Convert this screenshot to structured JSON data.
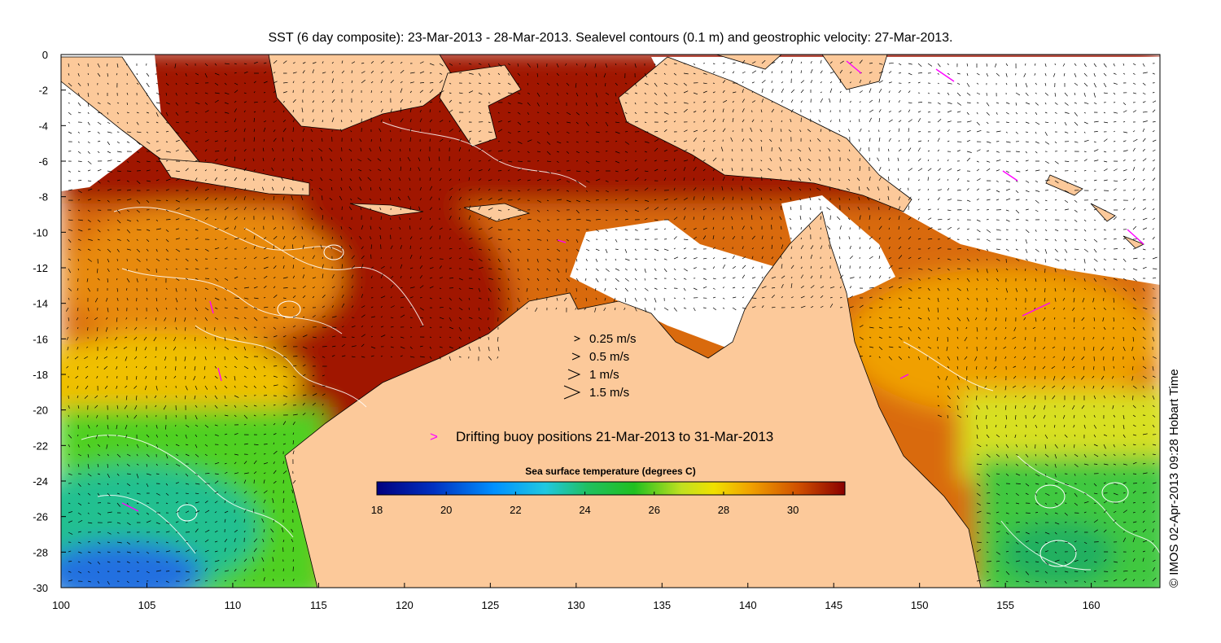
{
  "title": "SST (6 day composite): 23-Mar-2013 - 28-Mar-2013. Sealevel contours (0.1 m) and geostrophic velocity: 27-Mar-2013.",
  "credit": "© IMOS 02-Apr-2013 09:28 Hobart Time",
  "axes": {
    "lon_min": 100,
    "lon_max": 164,
    "lat_min": -30,
    "lat_max": 0,
    "x_ticks": [
      "100",
      "105",
      "110",
      "115",
      "120",
      "125",
      "130",
      "135",
      "140",
      "145",
      "150",
      "155",
      "160"
    ],
    "y_ticks": [
      "0",
      "-2",
      "-4",
      "-6",
      "-8",
      "-10",
      "-12",
      "-14",
      "-16",
      "-18",
      "-20",
      "-22",
      "-24",
      "-26",
      "-28",
      "-30"
    ]
  },
  "speed_legend": [
    {
      "label": "0.25 m/s",
      "speed": 0.25
    },
    {
      "label": "0.5 m/s",
      "speed": 0.5
    },
    {
      "label": "1 m/s",
      "speed": 1
    },
    {
      "label": "1.5 m/s",
      "speed": 1.5
    }
  ],
  "buoy_legend": {
    "symbol": ">",
    "label": "Drifting buoy positions 21-Mar-2013 to 31-Mar-2013"
  },
  "colorbar": {
    "title": "Sea surface temperature (degrees C)",
    "min": 18,
    "max": 31.5,
    "ticks": [
      "18",
      "20",
      "22",
      "24",
      "26",
      "28",
      "30"
    ]
  },
  "colors": {
    "land": "#fcc99a",
    "no_data": "#ffffff",
    "contour": "#ffffff",
    "vector": "#000000",
    "buoy": "#ff00ff"
  }
}
